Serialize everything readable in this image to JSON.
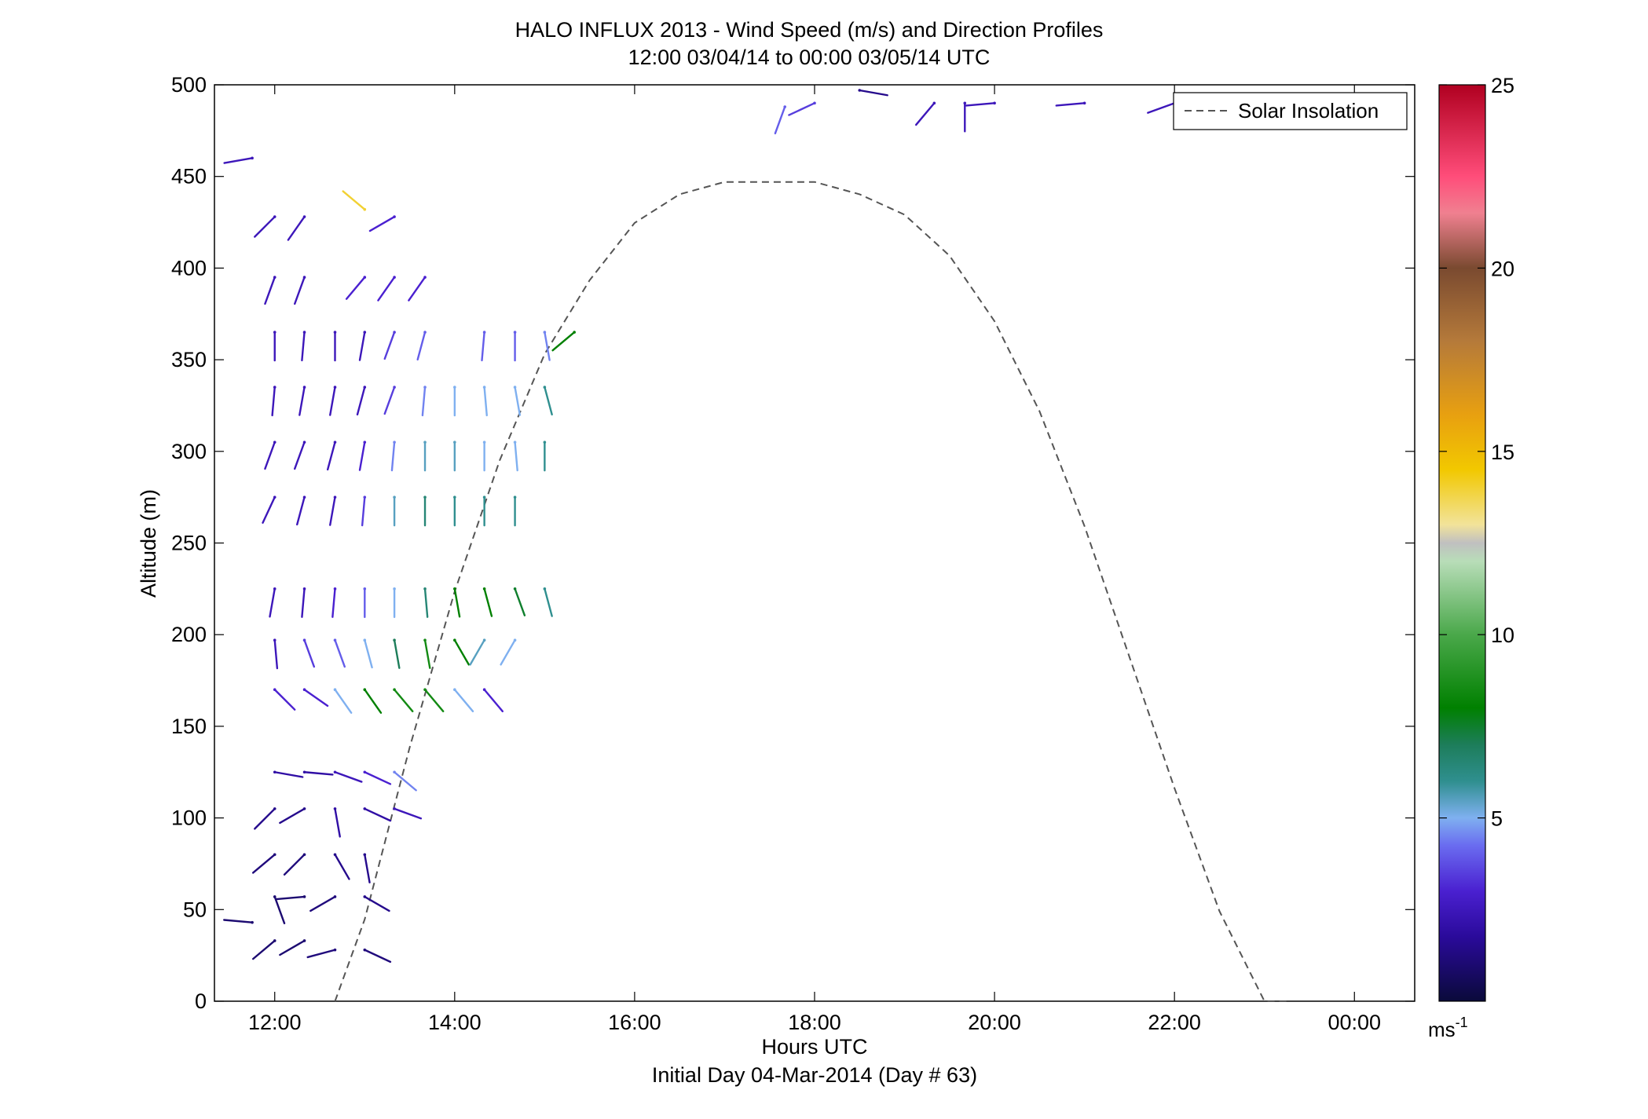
{
  "title": "HALO INFLUX 2013 - Wind Speed (m/s) and Direction Profiles",
  "subtitle": "12:00 03/04/14 to 00:00 03/05/14  UTC",
  "xlabel": "Hours UTC",
  "xlabel2": "Initial Day 04-Mar-2014 (Day # 63)",
  "ylabel": "Altitude (m)",
  "colorbar_unit": "ms",
  "colorbar_unit_exp": "-1",
  "legend_label": "Solar Insolation",
  "chart_data": {
    "type": "scatter",
    "title": "HALO INFLUX 2013 - Wind Speed (m/s) and Direction Profiles",
    "subtitle": "12:00 03/04/14 to 00:00 03/05/14  UTC",
    "xlabel": "Hours UTC",
    "ylabel": "Altitude (m)",
    "xlim": [
      11.33,
      24.67
    ],
    "ylim": [
      0,
      500
    ],
    "xticks": [
      12,
      14,
      16,
      18,
      20,
      22,
      24
    ],
    "xtick_labels": [
      "12:00",
      "14:00",
      "16:00",
      "18:00",
      "20:00",
      "22:00",
      "00:00"
    ],
    "yticks": [
      0,
      50,
      100,
      150,
      200,
      250,
      300,
      350,
      400,
      450,
      500
    ],
    "colorbar": {
      "range": [
        0,
        25
      ],
      "ticks": [
        5,
        10,
        15,
        20,
        25
      ],
      "label": "ms-1"
    },
    "legend": {
      "entries": [
        "Solar Insolation"
      ],
      "placement": "top-right"
    },
    "solar_insolation": {
      "style": "dashed",
      "color": "#555555",
      "hours": [
        12.67,
        13.0,
        13.5,
        14.0,
        14.5,
        15.0,
        15.5,
        16.0,
        16.5,
        17.0,
        17.5,
        18.0,
        18.5,
        19.0,
        19.5,
        20.0,
        20.5,
        21.0,
        21.5,
        22.0,
        22.5,
        23.0,
        23.25
      ],
      "relative": [
        0.0,
        0.1,
        0.31,
        0.5,
        0.66,
        0.79,
        0.88,
        0.95,
        0.985,
        1.0,
        1.0,
        1.0,
        0.985,
        0.96,
        0.91,
        0.83,
        0.72,
        0.58,
        0.42,
        0.26,
        0.11,
        0.0,
        0.0
      ]
    },
    "wind_profiles": [
      {
        "x": 11.75,
        "y": 460,
        "speed": 2.5,
        "dir": 260
      },
      {
        "x": 12.0,
        "y": 428,
        "speed": 2.5,
        "dir": 225
      },
      {
        "x": 12.33,
        "y": 428,
        "speed": 2.5,
        "dir": 215
      },
      {
        "x": 13.0,
        "y": 432,
        "speed": 14,
        "dir": 310
      },
      {
        "x": 13.33,
        "y": 428,
        "speed": 3,
        "dir": 240
      },
      {
        "x": 12.0,
        "y": 395,
        "speed": 2.5,
        "dir": 200
      },
      {
        "x": 12.33,
        "y": 395,
        "speed": 2.5,
        "dir": 200
      },
      {
        "x": 13.0,
        "y": 395,
        "speed": 3,
        "dir": 220
      },
      {
        "x": 13.33,
        "y": 395,
        "speed": 3,
        "dir": 215
      },
      {
        "x": 13.67,
        "y": 395,
        "speed": 3,
        "dir": 215
      },
      {
        "x": 12.0,
        "y": 365,
        "speed": 2.5,
        "dir": 180
      },
      {
        "x": 12.33,
        "y": 365,
        "speed": 2.5,
        "dir": 185
      },
      {
        "x": 12.67,
        "y": 365,
        "speed": 2.5,
        "dir": 180
      },
      {
        "x": 13.0,
        "y": 365,
        "speed": 2.5,
        "dir": 190
      },
      {
        "x": 13.33,
        "y": 365,
        "speed": 3.5,
        "dir": 200
      },
      {
        "x": 13.67,
        "y": 365,
        "speed": 4,
        "dir": 195
      },
      {
        "x": 14.33,
        "y": 365,
        "speed": 4,
        "dir": 185
      },
      {
        "x": 14.67,
        "y": 365,
        "speed": 4,
        "dir": 180
      },
      {
        "x": 15.0,
        "y": 365,
        "speed": 4.5,
        "dir": 170
      },
      {
        "x": 15.33,
        "y": 365,
        "speed": 8,
        "dir": 230
      },
      {
        "x": 12.0,
        "y": 335,
        "speed": 2.5,
        "dir": 185
      },
      {
        "x": 12.33,
        "y": 335,
        "speed": 2.5,
        "dir": 190
      },
      {
        "x": 12.67,
        "y": 335,
        "speed": 2.5,
        "dir": 190
      },
      {
        "x": 13.0,
        "y": 335,
        "speed": 2.5,
        "dir": 195
      },
      {
        "x": 13.33,
        "y": 335,
        "speed": 3.5,
        "dir": 200
      },
      {
        "x": 13.67,
        "y": 335,
        "speed": 4.5,
        "dir": 185
      },
      {
        "x": 14.0,
        "y": 335,
        "speed": 5,
        "dir": 180
      },
      {
        "x": 14.33,
        "y": 335,
        "speed": 5,
        "dir": 175
      },
      {
        "x": 14.67,
        "y": 335,
        "speed": 5,
        "dir": 170
      },
      {
        "x": 15.0,
        "y": 335,
        "speed": 6,
        "dir": 165
      },
      {
        "x": 12.0,
        "y": 305,
        "speed": 2.5,
        "dir": 200
      },
      {
        "x": 12.33,
        "y": 305,
        "speed": 2.5,
        "dir": 200
      },
      {
        "x": 12.67,
        "y": 305,
        "speed": 2.5,
        "dir": 195
      },
      {
        "x": 13.0,
        "y": 305,
        "speed": 3,
        "dir": 190
      },
      {
        "x": 13.33,
        "y": 305,
        "speed": 4.5,
        "dir": 185
      },
      {
        "x": 13.67,
        "y": 305,
        "speed": 5.5,
        "dir": 180
      },
      {
        "x": 14.0,
        "y": 305,
        "speed": 5.5,
        "dir": 180
      },
      {
        "x": 14.33,
        "y": 305,
        "speed": 5,
        "dir": 180
      },
      {
        "x": 14.67,
        "y": 305,
        "speed": 5,
        "dir": 175
      },
      {
        "x": 15.0,
        "y": 305,
        "speed": 6,
        "dir": 180
      },
      {
        "x": 12.0,
        "y": 275,
        "speed": 2.5,
        "dir": 205
      },
      {
        "x": 12.33,
        "y": 275,
        "speed": 2.5,
        "dir": 195
      },
      {
        "x": 12.67,
        "y": 275,
        "speed": 2.5,
        "dir": 190
      },
      {
        "x": 13.0,
        "y": 275,
        "speed": 3.5,
        "dir": 185
      },
      {
        "x": 13.33,
        "y": 275,
        "speed": 5.5,
        "dir": 180
      },
      {
        "x": 13.67,
        "y": 275,
        "speed": 6.5,
        "dir": 180
      },
      {
        "x": 14.0,
        "y": 275,
        "speed": 6,
        "dir": 180
      },
      {
        "x": 14.33,
        "y": 275,
        "speed": 6,
        "dir": 180
      },
      {
        "x": 14.67,
        "y": 275,
        "speed": 6,
        "dir": 180
      },
      {
        "x": 12.0,
        "y": 225,
        "speed": 2.5,
        "dir": 190
      },
      {
        "x": 12.33,
        "y": 225,
        "speed": 2.5,
        "dir": 185
      },
      {
        "x": 12.67,
        "y": 225,
        "speed": 3,
        "dir": 185
      },
      {
        "x": 13.0,
        "y": 225,
        "speed": 4,
        "dir": 180
      },
      {
        "x": 13.33,
        "y": 225,
        "speed": 5,
        "dir": 180
      },
      {
        "x": 13.67,
        "y": 225,
        "speed": 6.5,
        "dir": 175
      },
      {
        "x": 14.0,
        "y": 225,
        "speed": 8,
        "dir": 170
      },
      {
        "x": 14.33,
        "y": 225,
        "speed": 8,
        "dir": 165
      },
      {
        "x": 14.67,
        "y": 225,
        "speed": 7.5,
        "dir": 160
      },
      {
        "x": 15.0,
        "y": 225,
        "speed": 6,
        "dir": 165
      },
      {
        "x": 12.0,
        "y": 197,
        "speed": 2.5,
        "dir": 175
      },
      {
        "x": 12.33,
        "y": 197,
        "speed": 3.5,
        "dir": 160
      },
      {
        "x": 12.67,
        "y": 197,
        "speed": 4,
        "dir": 160
      },
      {
        "x": 13.0,
        "y": 197,
        "speed": 5,
        "dir": 165
      },
      {
        "x": 13.33,
        "y": 197,
        "speed": 7,
        "dir": 170
      },
      {
        "x": 13.67,
        "y": 197,
        "speed": 8.5,
        "dir": 170
      },
      {
        "x": 14.0,
        "y": 197,
        "speed": 8,
        "dir": 150
      },
      {
        "x": 14.33,
        "y": 197,
        "speed": 5.5,
        "dir": 210
      },
      {
        "x": 14.67,
        "y": 197,
        "speed": 5,
        "dir": 210
      },
      {
        "x": 12.0,
        "y": 170,
        "speed": 3,
        "dir": 135
      },
      {
        "x": 12.33,
        "y": 170,
        "speed": 3,
        "dir": 125
      },
      {
        "x": 12.67,
        "y": 170,
        "speed": 5,
        "dir": 145
      },
      {
        "x": 13.0,
        "y": 170,
        "speed": 8,
        "dir": 145
      },
      {
        "x": 13.33,
        "y": 170,
        "speed": 8.5,
        "dir": 140
      },
      {
        "x": 13.67,
        "y": 170,
        "speed": 8.5,
        "dir": 140
      },
      {
        "x": 14.0,
        "y": 170,
        "speed": 5,
        "dir": 140
      },
      {
        "x": 14.33,
        "y": 170,
        "speed": 3,
        "dir": 140
      },
      {
        "x": 12.0,
        "y": 125,
        "speed": 2,
        "dir": 100
      },
      {
        "x": 12.33,
        "y": 125,
        "speed": 2,
        "dir": 95
      },
      {
        "x": 12.67,
        "y": 125,
        "speed": 2.5,
        "dir": 110
      },
      {
        "x": 13.0,
        "y": 125,
        "speed": 3,
        "dir": 115
      },
      {
        "x": 13.33,
        "y": 125,
        "speed": 4.5,
        "dir": 130
      },
      {
        "x": 12.0,
        "y": 105,
        "speed": 1.5,
        "dir": 225
      },
      {
        "x": 12.33,
        "y": 105,
        "speed": 1.5,
        "dir": 240
      },
      {
        "x": 12.67,
        "y": 105,
        "speed": 2,
        "dir": 170
      },
      {
        "x": 13.0,
        "y": 105,
        "speed": 2,
        "dir": 115
      },
      {
        "x": 13.33,
        "y": 105,
        "speed": 2.5,
        "dir": 110
      },
      {
        "x": 12.0,
        "y": 80,
        "speed": 1.2,
        "dir": 230
      },
      {
        "x": 12.33,
        "y": 80,
        "speed": 1.2,
        "dir": 225
      },
      {
        "x": 12.67,
        "y": 80,
        "speed": 1.5,
        "dir": 150
      },
      {
        "x": 13.0,
        "y": 80,
        "speed": 1.5,
        "dir": 170
      },
      {
        "x": 12.0,
        "y": 57,
        "speed": 1,
        "dir": 160
      },
      {
        "x": 12.33,
        "y": 57,
        "speed": 1,
        "dir": 265
      },
      {
        "x": 12.67,
        "y": 57,
        "speed": 1.2,
        "dir": 240
      },
      {
        "x": 13.0,
        "y": 57,
        "speed": 1.5,
        "dir": 120
      },
      {
        "x": 11.75,
        "y": 43,
        "speed": 1,
        "dir": 275
      },
      {
        "x": 12.0,
        "y": 33,
        "speed": 1,
        "dir": 230
      },
      {
        "x": 12.33,
        "y": 33,
        "speed": 1,
        "dir": 240
      },
      {
        "x": 12.67,
        "y": 28,
        "speed": 1.2,
        "dir": 255
      },
      {
        "x": 13.0,
        "y": 28,
        "speed": 1.2,
        "dir": 115
      },
      {
        "x": 17.67,
        "y": 488,
        "speed": 4,
        "dir": 200
      },
      {
        "x": 18.0,
        "y": 490,
        "speed": 3.5,
        "dir": 245
      },
      {
        "x": 18.5,
        "y": 497,
        "speed": 1.5,
        "dir": 100
      },
      {
        "x": 19.33,
        "y": 490,
        "speed": 2.5,
        "dir": 220
      },
      {
        "x": 19.67,
        "y": 490,
        "speed": 2.5,
        "dir": 180
      },
      {
        "x": 20.0,
        "y": 490,
        "speed": 2.5,
        "dir": 265
      },
      {
        "x": 21.0,
        "y": 490,
        "speed": 2.5,
        "dir": 265
      },
      {
        "x": 22.0,
        "y": 490,
        "speed": 2.5,
        "dir": 250
      }
    ]
  }
}
